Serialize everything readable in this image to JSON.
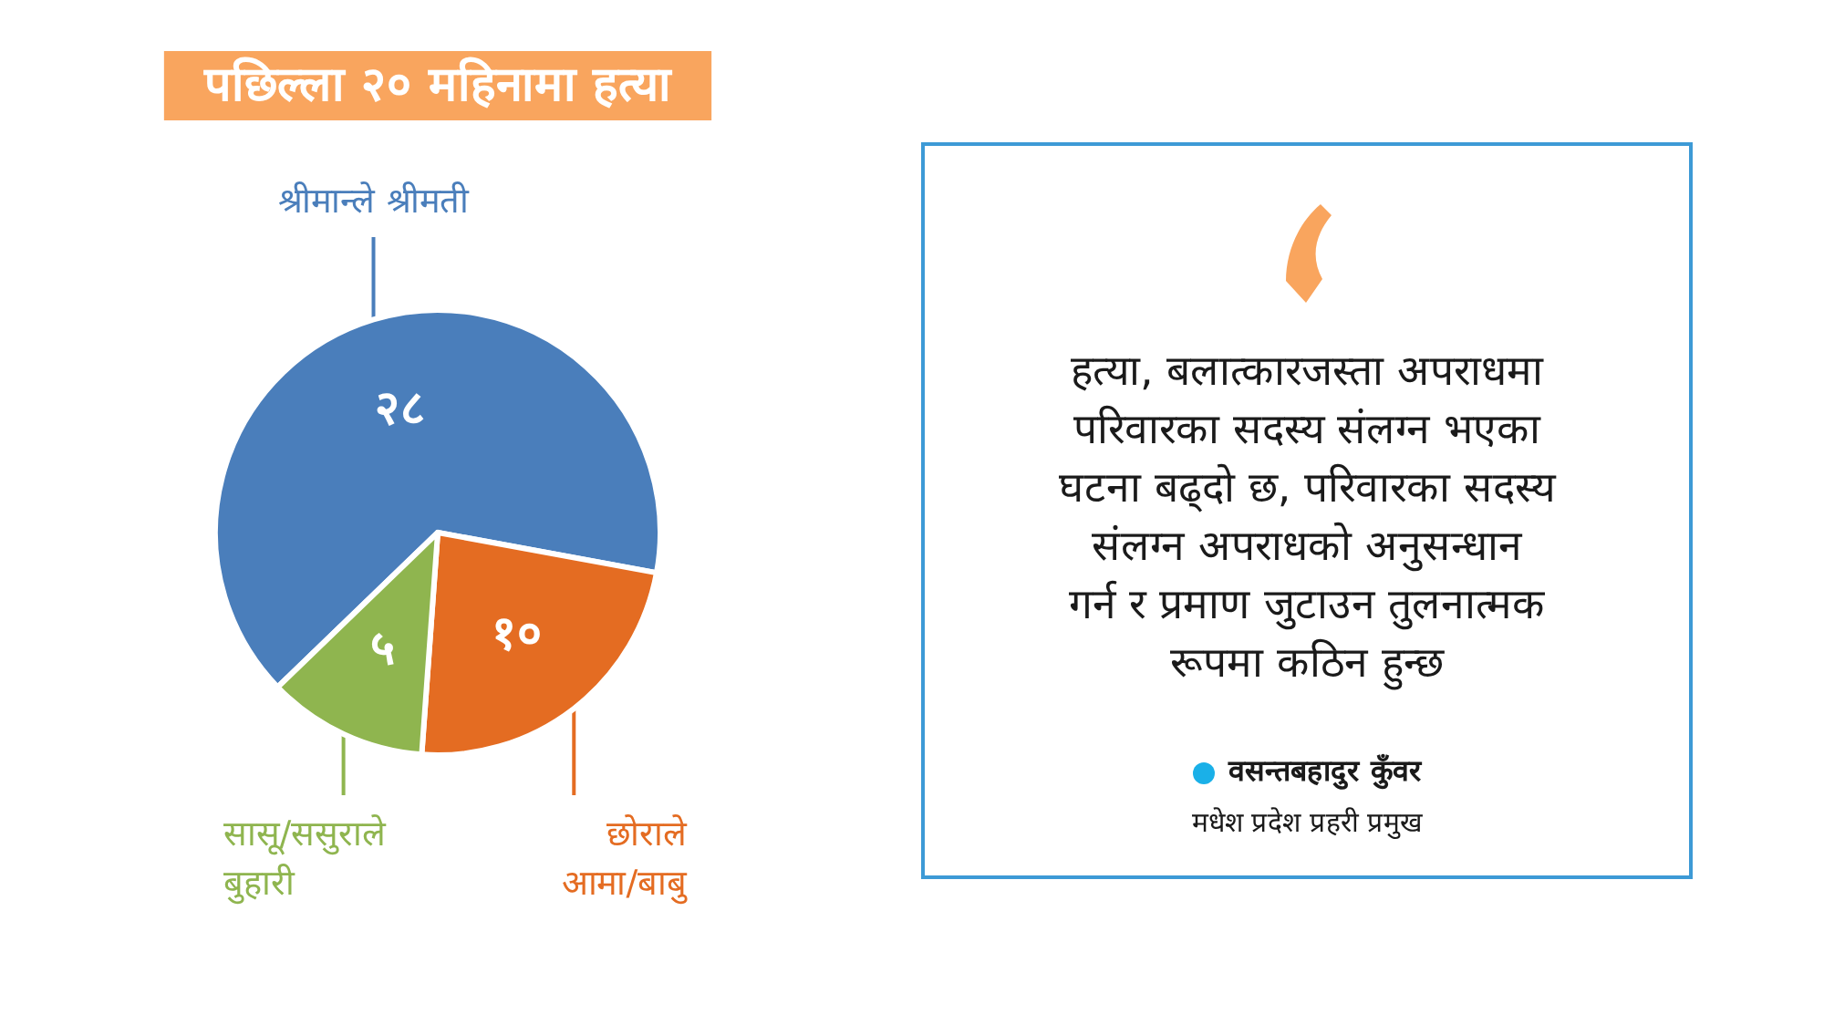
{
  "chart_data": [
    {
      "type": "pie",
      "title": "पछिल्ला २० महिनामा हत्या",
      "categories": [
        "श्रीमान्ले श्रीमती",
        "छोराले आमा/बाबु",
        "सासू/ससुराले बुहारी"
      ],
      "values": [
        28,
        10,
        5
      ],
      "colors": [
        "#4a7ebb",
        "#e46c22",
        "#8fb54f"
      ],
      "value_labels": [
        "२८",
        "१०",
        "५"
      ]
    },
    {
      "type": "other",
      "annotations": [
        "हत्या, बलात्कारजस्ता अपराधमा\nपरिवारका सदस्य संलग्न भएका\nघटना बढ्दो छ, परिवारका सदस्य\nसंलग्न अपराधको अनुसन्धान\nगर्न र प्रमाण जुटाउन तुलनात्मक\nरूपमा कठिन हुन्छ",
        "वसन्तबहादुर कुँवर",
        "मधेश प्रदेश प्रहरी प्रमुख"
      ]
    }
  ]
}
